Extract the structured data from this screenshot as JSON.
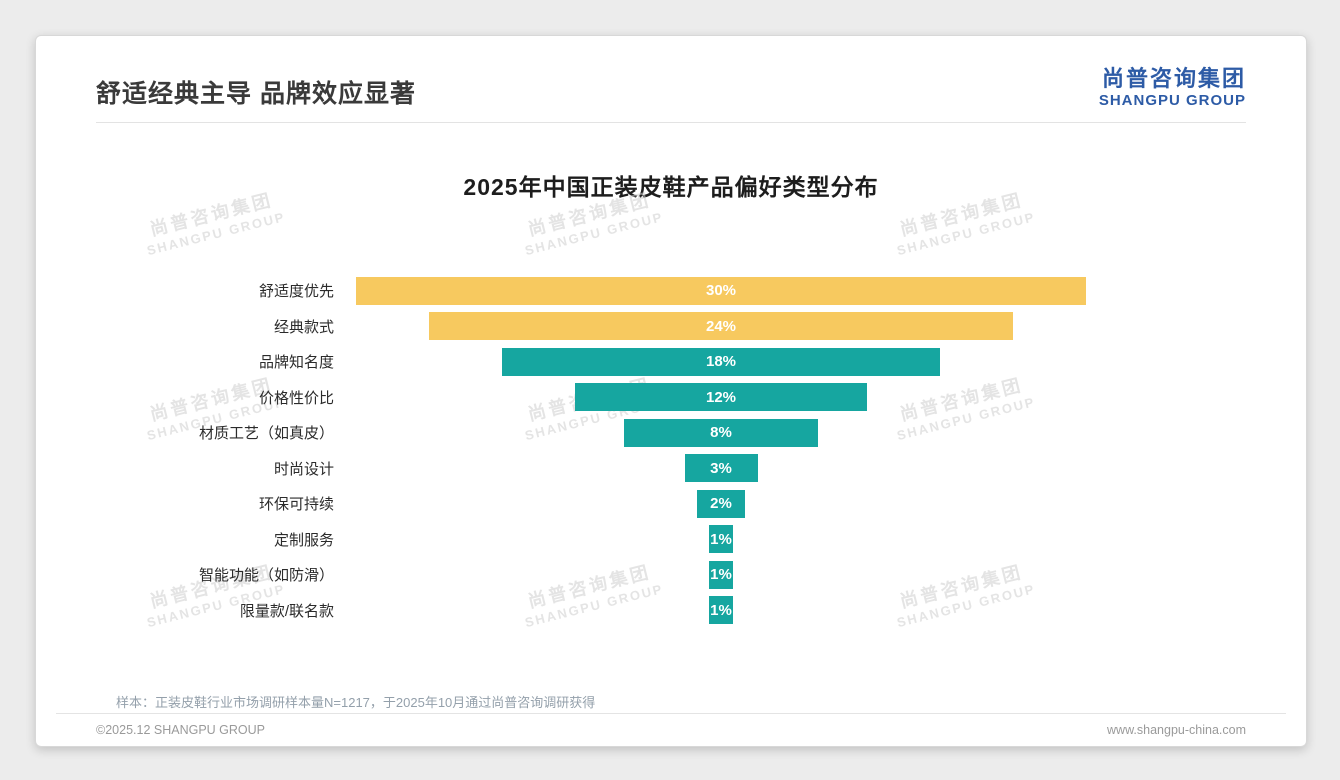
{
  "page": {
    "title": "舒适经典主导 品牌效应显著",
    "note": "样本：正装皮鞋行业市场调研样本量N=1217，于2025年10月通过尚普咨询调研获得",
    "footer_left": "©2025.12 SHANGPU GROUP",
    "footer_right": "www.shangpu-china.com"
  },
  "logo": {
    "cn": "尚普咨询集团",
    "en": "SHANGPU GROUP"
  },
  "watermark": {
    "cn": "尚普咨询集团",
    "en": "SHANGPU GROUP"
  },
  "colors": {
    "gold": "#F7C95F",
    "teal": "#16A6A0",
    "logo_blue": "#2d5ba6"
  },
  "chart_data": {
    "type": "bar",
    "orientation": "horizontal-centered-funnel",
    "title": "2025年中国正装皮鞋产品偏好类型分布",
    "categories": [
      "舒适度优先",
      "经典款式",
      "品牌知名度",
      "价格性价比",
      "材质工艺（如真皮）",
      "时尚设计",
      "环保可持续",
      "定制服务",
      "智能功能（如防滑）",
      "限量款/联名款"
    ],
    "values": [
      30,
      24,
      18,
      12,
      8,
      3,
      2,
      1,
      1,
      1
    ],
    "labels": [
      "30%",
      "24%",
      "18%",
      "12%",
      "8%",
      "3%",
      "2%",
      "1%",
      "1%",
      "1%"
    ],
    "bar_colors": [
      "#F7C95F",
      "#F7C95F",
      "#16A6A0",
      "#16A6A0",
      "#16A6A0",
      "#16A6A0",
      "#16A6A0",
      "#16A6A0",
      "#16A6A0",
      "#16A6A0"
    ],
    "xlim": [
      0,
      30
    ],
    "value_label_color": "#ffffff",
    "grid": false,
    "legend": "none"
  }
}
